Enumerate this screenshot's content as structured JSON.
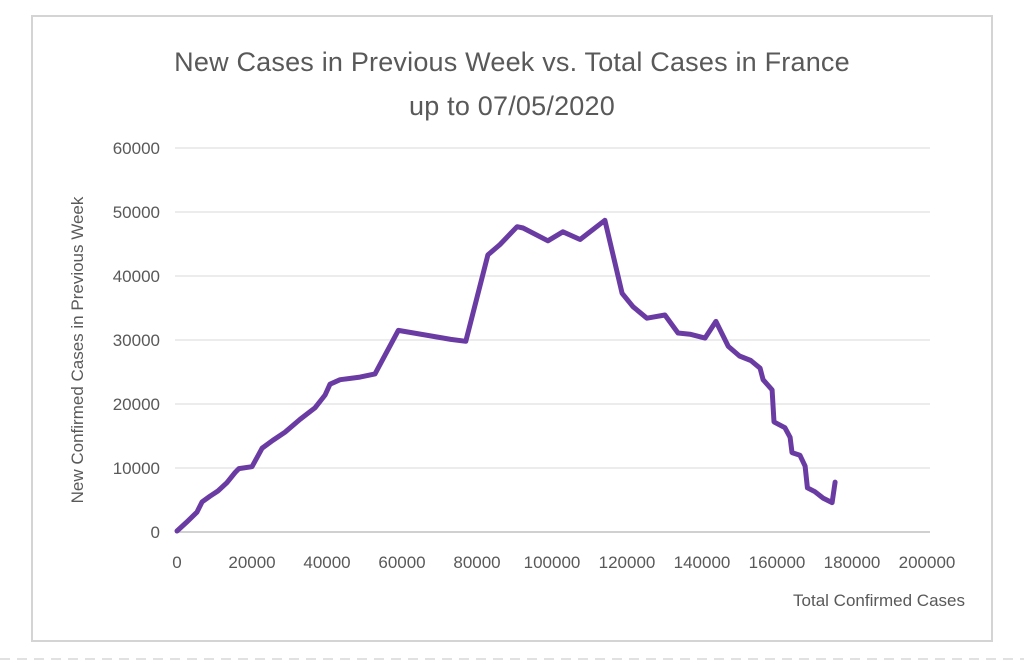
{
  "chart_data": {
    "type": "line",
    "title_line1": "New Cases in Previous Week vs. Total Cases in France",
    "title_line2": "up to 07/05/2020",
    "xlabel": "Total Confirmed Cases",
    "ylabel": "New Confirmed Cases in Previous Week",
    "xlim": [
      0,
      200000
    ],
    "ylim": [
      0,
      60000
    ],
    "xticks": [
      0,
      20000,
      40000,
      60000,
      80000,
      100000,
      120000,
      140000,
      160000,
      180000,
      200000
    ],
    "yticks": [
      0,
      10000,
      20000,
      30000,
      40000,
      50000,
      60000
    ],
    "grid": "horizontal",
    "legend": "none",
    "text_color": "#595959",
    "gridline_color": "#D9D9D9",
    "axisline_color": "#C0C0C0",
    "series": [
      {
        "name": "France",
        "color": "#6A3CA3",
        "points": [
          [
            0,
            150
          ],
          [
            2500,
            1500
          ],
          [
            5300,
            3100
          ],
          [
            6700,
            4700
          ],
          [
            8800,
            5600
          ],
          [
            10900,
            6400
          ],
          [
            13300,
            7700
          ],
          [
            15500,
            9300
          ],
          [
            16500,
            9900
          ],
          [
            20000,
            10200
          ],
          [
            22700,
            13100
          ],
          [
            25500,
            14300
          ],
          [
            28800,
            15600
          ],
          [
            32800,
            17600
          ],
          [
            36800,
            19400
          ],
          [
            39500,
            21400
          ],
          [
            40800,
            23100
          ],
          [
            43500,
            23800
          ],
          [
            48800,
            24200
          ],
          [
            52800,
            24700
          ],
          [
            59000,
            31500
          ],
          [
            67000,
            30700
          ],
          [
            73000,
            30100
          ],
          [
            77000,
            29800
          ],
          [
            82900,
            43300
          ],
          [
            86100,
            44900
          ],
          [
            90700,
            47700
          ],
          [
            92300,
            47500
          ],
          [
            98900,
            45500
          ],
          [
            102900,
            46900
          ],
          [
            107500,
            45700
          ],
          [
            114100,
            48700
          ],
          [
            118700,
            37300
          ],
          [
            121600,
            35200
          ],
          [
            125300,
            33400
          ],
          [
            130100,
            33900
          ],
          [
            133600,
            31100
          ],
          [
            136800,
            30900
          ],
          [
            140800,
            30300
          ],
          [
            143700,
            32900
          ],
          [
            147000,
            29000
          ],
          [
            150000,
            27500
          ],
          [
            153000,
            26800
          ],
          [
            155500,
            25600
          ],
          [
            156300,
            23800
          ],
          [
            158700,
            22200
          ],
          [
            159200,
            17200
          ],
          [
            162100,
            16300
          ],
          [
            163500,
            14800
          ],
          [
            164000,
            12400
          ],
          [
            166100,
            12000
          ],
          [
            167500,
            10300
          ],
          [
            168100,
            6900
          ],
          [
            170100,
            6300
          ],
          [
            172300,
            5300
          ],
          [
            174700,
            4600
          ],
          [
            175500,
            7800
          ]
        ]
      }
    ]
  }
}
